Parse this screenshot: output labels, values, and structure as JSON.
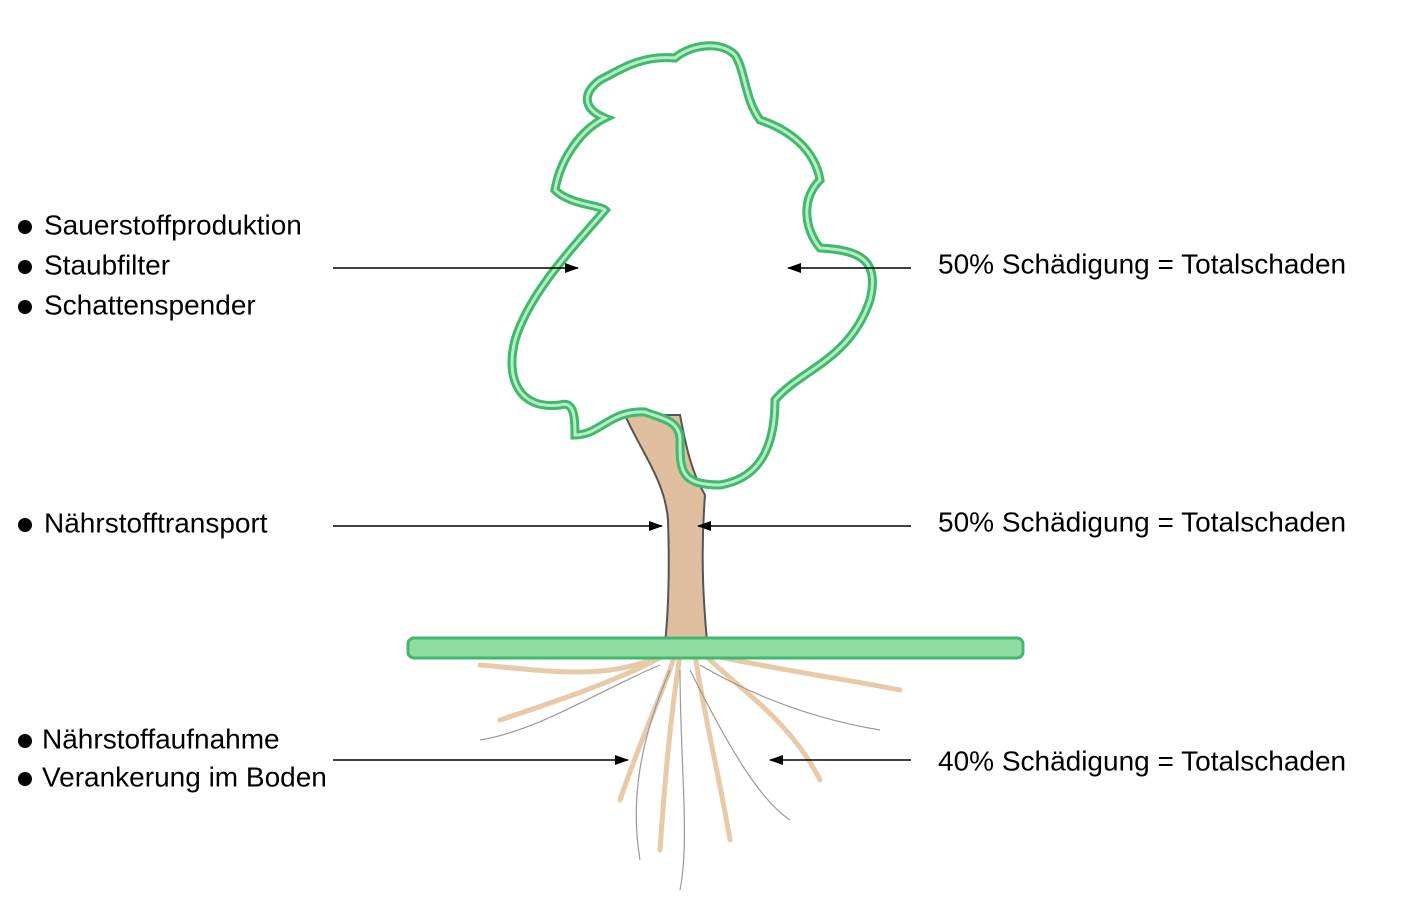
{
  "rows": [
    {
      "functions": [
        "Sauerstoffproduktion",
        "Staubfilter",
        "Schattenspender"
      ],
      "damage": "50% Schädigung = Totalschaden"
    },
    {
      "functions": [
        "Nährstofftransport"
      ],
      "damage": "50% Schädigung = Totalschaden"
    },
    {
      "functions": [
        "Nährstoffaufnahme",
        "Verankerung im Boden"
      ],
      "damage": "40% Schädigung = Totalschaden"
    }
  ]
}
